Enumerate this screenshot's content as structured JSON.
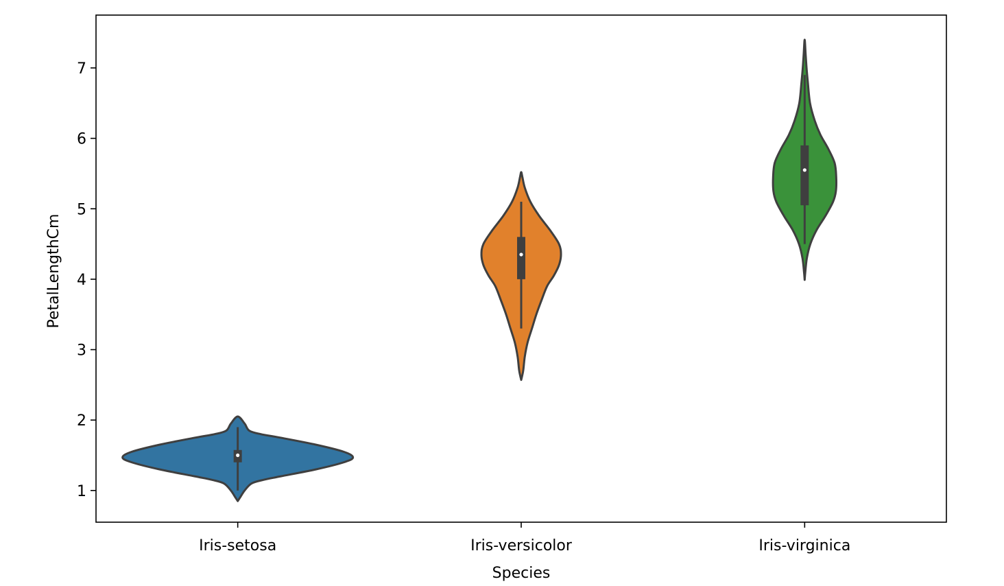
{
  "chart_data": {
    "type": "violin",
    "title": "",
    "xlabel": "Species",
    "ylabel": "PetalLengthCm",
    "ylim": [
      0.55,
      7.75
    ],
    "yticks": [
      1,
      2,
      3,
      4,
      5,
      6,
      7
    ],
    "grid": false,
    "categories": [
      "Iris-setosa",
      "Iris-versicolor",
      "Iris-virginica"
    ],
    "colors": [
      "#3274a1",
      "#e1812c",
      "#3a923a"
    ],
    "outline_color": "#3f3f3f",
    "series": [
      {
        "category": "Iris-setosa",
        "min": 1.0,
        "q1": 1.4,
        "median": 1.5,
        "q3": 1.575,
        "max": 1.9,
        "density": [
          [
            0.85,
            0.0
          ],
          [
            0.9,
            0.02
          ],
          [
            1.0,
            0.06
          ],
          [
            1.1,
            0.12
          ],
          [
            1.15,
            0.22
          ],
          [
            1.2,
            0.37
          ],
          [
            1.3,
            0.68
          ],
          [
            1.4,
            0.92
          ],
          [
            1.47,
            1.0
          ],
          [
            1.55,
            0.92
          ],
          [
            1.65,
            0.68
          ],
          [
            1.75,
            0.37
          ],
          [
            1.8,
            0.2
          ],
          [
            1.85,
            0.1
          ],
          [
            1.95,
            0.06
          ],
          [
            2.05,
            0.0
          ]
        ]
      },
      {
        "category": "Iris-versicolor",
        "min": 3.3,
        "q1": 4.0,
        "median": 4.35,
        "q3": 4.6,
        "max": 5.1,
        "density": [
          [
            2.57,
            0.0
          ],
          [
            2.7,
            0.05
          ],
          [
            2.9,
            0.09
          ],
          [
            3.1,
            0.16
          ],
          [
            3.3,
            0.27
          ],
          [
            3.5,
            0.38
          ],
          [
            3.7,
            0.51
          ],
          [
            3.9,
            0.65
          ],
          [
            4.05,
            0.82
          ],
          [
            4.2,
            0.95
          ],
          [
            4.35,
            1.0
          ],
          [
            4.5,
            0.95
          ],
          [
            4.7,
            0.72
          ],
          [
            4.9,
            0.45
          ],
          [
            5.1,
            0.23
          ],
          [
            5.3,
            0.09
          ],
          [
            5.45,
            0.03
          ],
          [
            5.52,
            0.0
          ]
        ]
      },
      {
        "category": "Iris-virginica",
        "min": 4.5,
        "q1": 5.05,
        "median": 5.55,
        "q3": 5.9,
        "max": 6.9,
        "density": [
          [
            3.99,
            0.0
          ],
          [
            4.1,
            0.02
          ],
          [
            4.3,
            0.07
          ],
          [
            4.5,
            0.18
          ],
          [
            4.7,
            0.38
          ],
          [
            4.9,
            0.66
          ],
          [
            5.1,
            0.9
          ],
          [
            5.25,
            0.99
          ],
          [
            5.45,
            1.0
          ],
          [
            5.65,
            0.95
          ],
          [
            5.85,
            0.75
          ],
          [
            6.05,
            0.5
          ],
          [
            6.25,
            0.32
          ],
          [
            6.5,
            0.17
          ],
          [
            6.8,
            0.1
          ],
          [
            7.0,
            0.06
          ],
          [
            7.2,
            0.03
          ],
          [
            7.4,
            0.0
          ]
        ]
      }
    ]
  }
}
